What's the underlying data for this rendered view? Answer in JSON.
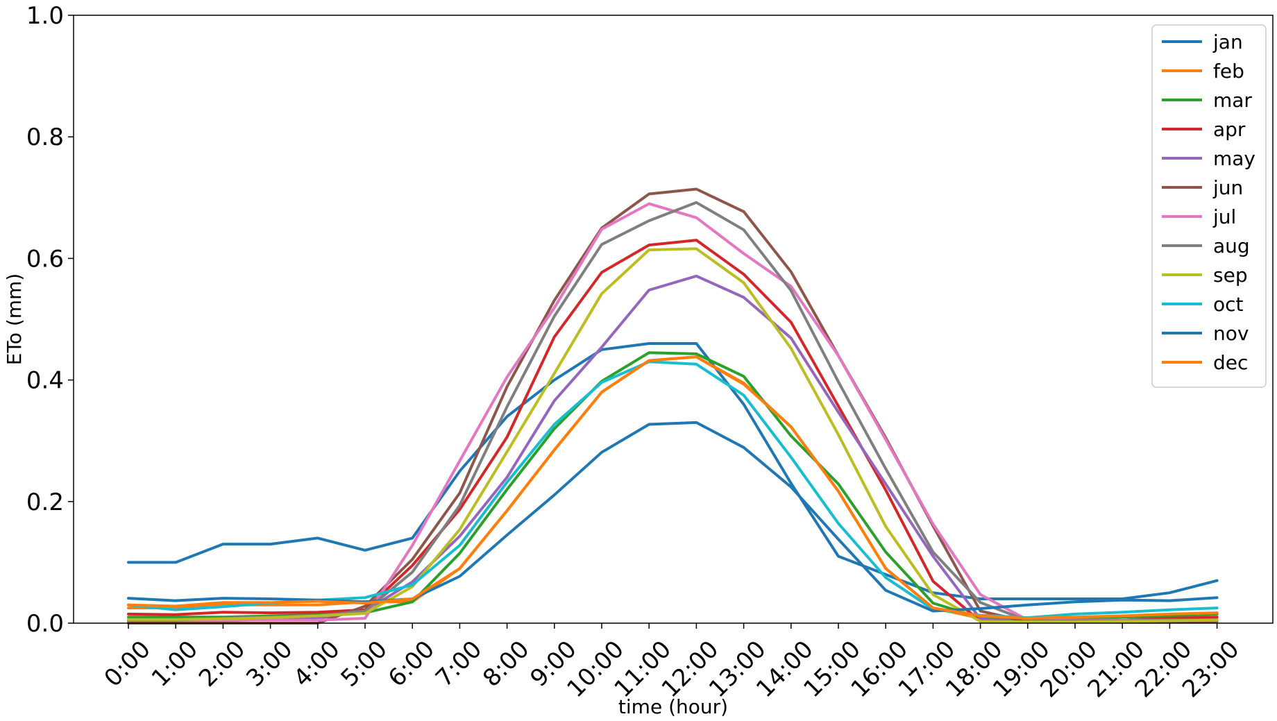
{
  "chart_data": {
    "type": "line",
    "xlabel": "time (hour)",
    "ylabel": "ETo (mm)",
    "ylim": [
      0,
      1.0
    ],
    "yticks": [
      "0.0",
      "0.2",
      "0.4",
      "0.6",
      "0.8",
      "1.0"
    ],
    "ytick_values": [
      0,
      0.2,
      0.4,
      0.6,
      0.8,
      1.0
    ],
    "categories": [
      "0:00",
      "1:00",
      "2:00",
      "3:00",
      "4:00",
      "5:00",
      "6:00",
      "7:00",
      "8:00",
      "9:00",
      "10:00",
      "11:00",
      "12:00",
      "13:00",
      "14:00",
      "15:00",
      "16:00",
      "17:00",
      "18:00",
      "19:00",
      "20:00",
      "21:00",
      "22:00",
      "23:00"
    ],
    "grid": false,
    "legend_position": "top-right",
    "series": [
      {
        "name": "jan",
        "color": "#1f77b4",
        "values": [
          0.1,
          0.1,
          0.13,
          0.13,
          0.14,
          0.12,
          0.14,
          0.25,
          0.34,
          0.4,
          0.45,
          0.46,
          0.46,
          0.36,
          0.23,
          0.11,
          0.08,
          0.05,
          0.04,
          0.04,
          0.04,
          0.04,
          0.05,
          0.07
        ]
      },
      {
        "name": "feb",
        "color": "#ff7f0e",
        "values": [
          0.025,
          0.025,
          0.03,
          0.03,
          0.03,
          0.035,
          0.035,
          0.09,
          0.185,
          0.285,
          0.38,
          0.432,
          0.438,
          0.395,
          0.323,
          0.217,
          0.09,
          0.025,
          0.008,
          0.004,
          0.004,
          0.005,
          0.008,
          0.01
        ]
      },
      {
        "name": "mar",
        "color": "#2ca02c",
        "values": [
          0.01,
          0.01,
          0.01,
          0.012,
          0.014,
          0.017,
          0.035,
          0.115,
          0.22,
          0.32,
          0.398,
          0.445,
          0.443,
          0.406,
          0.308,
          0.229,
          0.117,
          0.033,
          0.009,
          0.006,
          0.008,
          0.01,
          0.012,
          0.015
        ]
      },
      {
        "name": "apr",
        "color": "#d62728",
        "values": [
          0.015,
          0.014,
          0.018,
          0.017,
          0.018,
          0.022,
          0.095,
          0.187,
          0.306,
          0.471,
          0.577,
          0.622,
          0.63,
          0.574,
          0.495,
          0.357,
          0.219,
          0.069,
          0.003,
          0.003,
          0.004,
          0.005,
          0.008,
          0.01
        ]
      },
      {
        "name": "may",
        "color": "#9467bd",
        "values": [
          0.003,
          0.003,
          0.004,
          0.006,
          0.008,
          0.02,
          0.068,
          0.143,
          0.24,
          0.366,
          0.454,
          0.548,
          0.571,
          0.536,
          0.469,
          0.347,
          0.229,
          0.11,
          0.007,
          0.002,
          0.002,
          0.003,
          0.004,
          0.006
        ]
      },
      {
        "name": "jun",
        "color": "#8c564b",
        "values": [
          0.0,
          0.0,
          0.0,
          0.0,
          0.0,
          0.028,
          0.105,
          0.214,
          0.389,
          0.531,
          0.65,
          0.706,
          0.714,
          0.677,
          0.578,
          0.44,
          0.305,
          0.16,
          0.02,
          0.002,
          0.002,
          0.002,
          0.002,
          0.003
        ]
      },
      {
        "name": "jul",
        "color": "#e377c2",
        "values": [
          0.005,
          0.005,
          0.005,
          0.005,
          0.005,
          0.008,
          0.128,
          0.267,
          0.405,
          0.519,
          0.648,
          0.69,
          0.667,
          0.608,
          0.554,
          0.44,
          0.302,
          0.163,
          0.047,
          0.005,
          0.005,
          0.005,
          0.005,
          0.005
        ]
      },
      {
        "name": "aug",
        "color": "#7f7f7f",
        "values": [
          0.005,
          0.005,
          0.008,
          0.01,
          0.012,
          0.02,
          0.084,
          0.194,
          0.356,
          0.505,
          0.623,
          0.662,
          0.692,
          0.647,
          0.547,
          0.397,
          0.254,
          0.117,
          0.034,
          0.004,
          0.004,
          0.004,
          0.005,
          0.005
        ]
      },
      {
        "name": "sep",
        "color": "#bcbd22",
        "values": [
          0.006,
          0.006,
          0.007,
          0.009,
          0.012,
          0.016,
          0.06,
          0.154,
          0.282,
          0.411,
          0.542,
          0.614,
          0.616,
          0.56,
          0.452,
          0.31,
          0.159,
          0.047,
          0.003,
          0.002,
          0.002,
          0.003,
          0.004,
          0.005
        ]
      },
      {
        "name": "oct",
        "color": "#17becf",
        "values": [
          0.03,
          0.022,
          0.027,
          0.033,
          0.038,
          0.042,
          0.063,
          0.128,
          0.232,
          0.327,
          0.396,
          0.43,
          0.426,
          0.375,
          0.273,
          0.164,
          0.075,
          0.023,
          0.013,
          0.009,
          0.015,
          0.018,
          0.022,
          0.025
        ]
      },
      {
        "name": "nov",
        "color": "#1f77b4",
        "values": [
          0.041,
          0.037,
          0.041,
          0.04,
          0.038,
          0.035,
          0.04,
          0.077,
          0.145,
          0.211,
          0.281,
          0.327,
          0.33,
          0.289,
          0.224,
          0.138,
          0.054,
          0.02,
          0.024,
          0.03,
          0.035,
          0.038,
          0.037,
          0.042
        ]
      },
      {
        "name": "dec",
        "color": "#ff7f0e",
        "values": [
          0.03,
          0.028,
          0.034,
          0.034,
          0.036,
          0.033,
          0.04,
          0.09,
          0.185,
          0.285,
          0.38,
          0.432,
          0.438,
          0.393,
          0.323,
          0.217,
          0.09,
          0.025,
          0.012,
          0.008,
          0.01,
          0.012,
          0.015,
          0.017
        ]
      }
    ]
  }
}
